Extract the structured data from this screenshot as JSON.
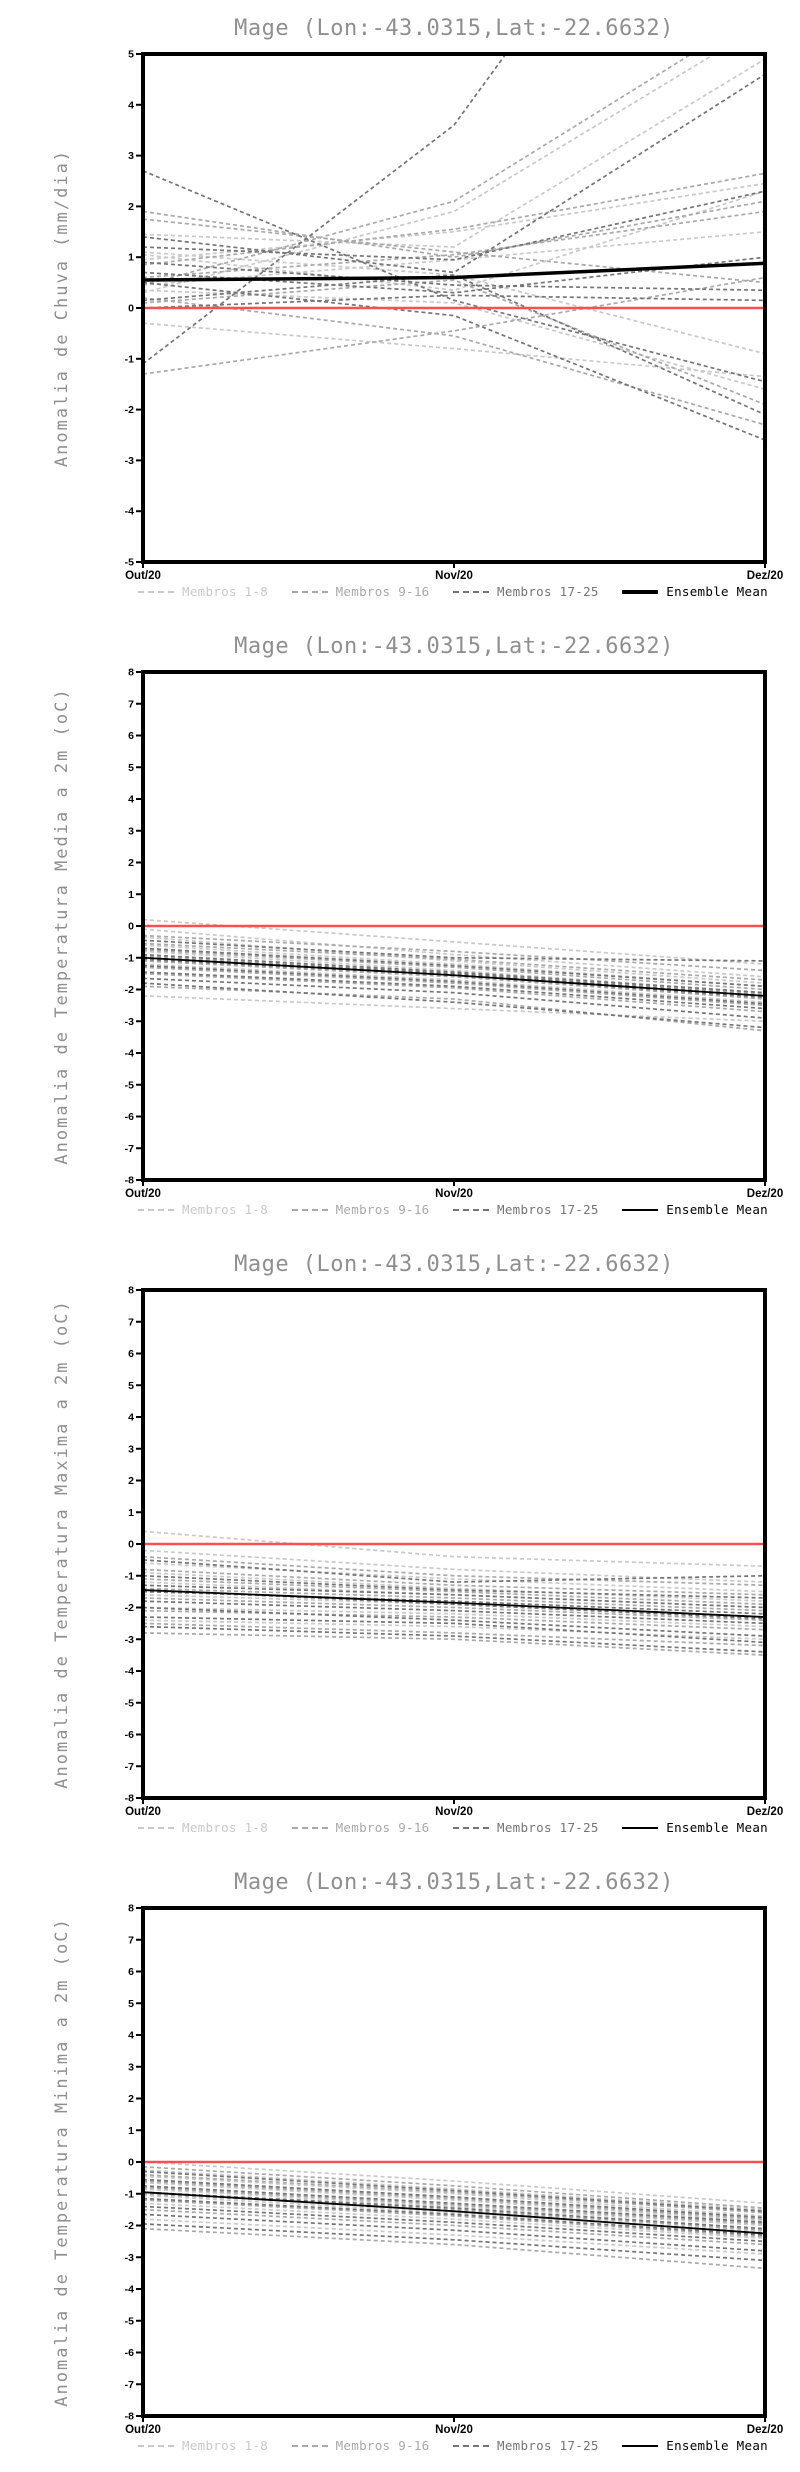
{
  "page": {
    "background": "#ffffff"
  },
  "colors": {
    "frame": "#000000",
    "zero_line": "#f85050",
    "title_text": "#8f8f8f",
    "ylabel_text": "#8f8f8f",
    "tick_text": "#000000",
    "group1": "#c9c9c9",
    "group2": "#a9a9a9",
    "group3": "#757575",
    "ensemble_mean": "#000000"
  },
  "chart_data": [
    {
      "type": "line",
      "title": "Mage (Lon:-43.0315,Lat:-22.6632)",
      "ylabel": "Anomalia de Chuva (mm/dia)",
      "ylim": [
        -5,
        5
      ],
      "yticks": [
        5,
        4,
        3,
        2,
        1,
        0,
        -1,
        -2,
        -3,
        -4,
        -5
      ],
      "x_tick_labels": [
        "Out/20",
        "Nov/20",
        "Dez/20"
      ],
      "grid": false,
      "legend_position": "bottom",
      "zero_line": {
        "y": 0,
        "color": "#f85050",
        "width": 2.5
      },
      "groups": [
        {
          "name": "Membros 1-8",
          "color": "#c9c9c9",
          "style": "dashed",
          "members": [
            [
              1.45,
              1.2,
              4.9
            ],
            [
              0.95,
              1.5,
              2.45
            ],
            [
              1.1,
              0.65,
              -0.9
            ],
            [
              0.45,
              0.95,
              1.5
            ],
            [
              0.3,
              1.9,
              5.6
            ],
            [
              -0.3,
              -0.8,
              -1.35
            ],
            [
              0.35,
              0.1,
              -1.6
            ],
            [
              1.05,
              0.35,
              2.3
            ]
          ]
        },
        {
          "name": "Membros 9-16",
          "color": "#a9a9a9",
          "style": "dashed",
          "members": [
            [
              1.9,
              1.0,
              2.1
            ],
            [
              1.75,
              1.1,
              0.5
            ],
            [
              0.85,
              1.55,
              2.65
            ],
            [
              0.6,
              1.05,
              1.9
            ],
            [
              0.45,
              2.1,
              5.9
            ],
            [
              0.1,
              0.55,
              -1.9
            ],
            [
              -1.3,
              -0.45,
              0.6
            ],
            [
              0.2,
              -0.55,
              -2.3
            ]
          ]
        },
        {
          "name": "Membros 17-25",
          "color": "#757575",
          "style": "dashed",
          "members": [
            [
              2.7,
              0.15,
              -1.45
            ],
            [
              -1.1,
              3.6,
              12.0
            ],
            [
              1.4,
              0.7,
              4.6
            ],
            [
              1.2,
              0.95,
              2.3
            ],
            [
              0.9,
              0.45,
              0.35
            ],
            [
              0.7,
              0.3,
              1.0
            ],
            [
              0.5,
              -0.15,
              -2.6
            ],
            [
              0.15,
              0.65,
              -2.1
            ],
            [
              0.0,
              0.25,
              0.15
            ]
          ]
        }
      ],
      "ensemble_mean": {
        "name": "Ensemble Mean",
        "color": "#000000",
        "style": "solid",
        "width": 3.5,
        "values": [
          0.55,
          0.6,
          0.88
        ]
      }
    },
    {
      "type": "line",
      "title": "Mage (Lon:-43.0315,Lat:-22.6632)",
      "ylabel": "Anomalia de Temperatura Media a 2m (oC)",
      "ylim": [
        -8,
        8
      ],
      "yticks": [
        8,
        7,
        6,
        5,
        4,
        3,
        2,
        1,
        0,
        -1,
        -2,
        -3,
        -4,
        -5,
        -6,
        -7,
        -8
      ],
      "x_tick_labels": [
        "Out/20",
        "Nov/20",
        "Dez/20"
      ],
      "grid": false,
      "legend_position": "bottom",
      "zero_line": {
        "y": 0,
        "color": "#f85050",
        "width": 2.5
      },
      "groups": [
        {
          "name": "Membros 1-8",
          "color": "#c9c9c9",
          "style": "dashed",
          "members": [
            [
              0.2,
              -0.5,
              -1.2
            ],
            [
              -0.1,
              -0.9,
              -1.6
            ],
            [
              -0.35,
              -1.1,
              -1.8
            ],
            [
              -0.6,
              -1.2,
              -1.9
            ],
            [
              -0.8,
              -1.4,
              -2.1
            ],
            [
              -1.0,
              -1.5,
              -2.2
            ],
            [
              -1.2,
              -1.7,
              -2.4
            ],
            [
              -2.2,
              -2.6,
              -3.0
            ]
          ]
        },
        {
          "name": "Membros 9-16",
          "color": "#a9a9a9",
          "style": "dashed",
          "members": [
            [
              -0.3,
              -0.8,
              -1.4
            ],
            [
              -0.55,
              -1.05,
              -1.7
            ],
            [
              -0.75,
              -1.3,
              -2.0
            ],
            [
              -0.95,
              -1.5,
              -2.15
            ],
            [
              -1.1,
              -1.6,
              -2.3
            ],
            [
              -1.3,
              -1.8,
              -2.5
            ],
            [
              -1.5,
              -1.95,
              -2.7
            ],
            [
              -1.9,
              -2.3,
              -3.3
            ]
          ]
        },
        {
          "name": "Membros 17-25",
          "color": "#757575",
          "style": "dashed",
          "members": [
            [
              -0.45,
              -1.0,
              -1.1
            ],
            [
              -0.7,
              -1.25,
              -1.9
            ],
            [
              -0.9,
              -1.45,
              -2.1
            ],
            [
              -1.05,
              -1.55,
              -2.25
            ],
            [
              -1.25,
              -1.75,
              -2.45
            ],
            [
              -1.45,
              -1.9,
              -2.6
            ],
            [
              -1.65,
              -2.1,
              -2.9
            ],
            [
              -1.8,
              -2.4,
              -3.2
            ],
            [
              -1.0,
              -1.5,
              -2.2
            ]
          ]
        }
      ],
      "ensemble_mean": {
        "name": "Ensemble Mean",
        "color": "#000000",
        "style": "solid",
        "width": 1.8,
        "values": [
          -1.0,
          -1.55,
          -2.2
        ]
      }
    },
    {
      "type": "line",
      "title": "Mage (Lon:-43.0315,Lat:-22.6632)",
      "ylabel": "Anomalia de Temperatura Maxima a 2m (oC)",
      "ylim": [
        -8,
        8
      ],
      "yticks": [
        8,
        7,
        6,
        5,
        4,
        3,
        2,
        1,
        0,
        -1,
        -2,
        -3,
        -4,
        -5,
        -6,
        -7,
        -8
      ],
      "x_tick_labels": [
        "Out/20",
        "Nov/20",
        "Dez/20"
      ],
      "grid": false,
      "legend_position": "bottom",
      "zero_line": {
        "y": 0,
        "color": "#f85050",
        "width": 2.5
      },
      "groups": [
        {
          "name": "Membros 1-8",
          "color": "#c9c9c9",
          "style": "dashed",
          "members": [
            [
              0.4,
              -0.4,
              -0.7
            ],
            [
              -0.2,
              -0.8,
              -1.2
            ],
            [
              -0.6,
              -1.1,
              -1.5
            ],
            [
              -0.9,
              -1.4,
              -1.8
            ],
            [
              -1.2,
              -1.6,
              -2.0
            ],
            [
              -1.6,
              -1.9,
              -2.3
            ],
            [
              -2.0,
              -2.2,
              -2.6
            ],
            [
              -2.4,
              -2.6,
              -3.0
            ]
          ]
        },
        {
          "name": "Membros 9-16",
          "color": "#a9a9a9",
          "style": "dashed",
          "members": [
            [
              -0.4,
              -1.0,
              -1.3
            ],
            [
              -0.8,
              -1.3,
              -1.6
            ],
            [
              -1.1,
              -1.5,
              -1.9
            ],
            [
              -1.4,
              -1.7,
              -2.1
            ],
            [
              -1.7,
              -2.0,
              -2.4
            ],
            [
              -2.1,
              -2.3,
              -2.7
            ],
            [
              -2.5,
              -2.8,
              -3.2
            ],
            [
              -2.8,
              -3.0,
              -3.5
            ]
          ]
        },
        {
          "name": "Membros 17-25",
          "color": "#757575",
          "style": "dashed",
          "members": [
            [
              -0.5,
              -1.2,
              -1.0
            ],
            [
              -1.0,
              -1.45,
              -1.7
            ],
            [
              -1.3,
              -1.6,
              -2.0
            ],
            [
              -1.5,
              -1.8,
              -2.2
            ],
            [
              -1.8,
              -2.1,
              -2.5
            ],
            [
              -2.0,
              -2.4,
              -2.9
            ],
            [
              -2.3,
              -2.5,
              -3.1
            ],
            [
              -2.6,
              -2.9,
              -3.4
            ],
            [
              -1.45,
              -1.9,
              -2.35
            ]
          ]
        }
      ],
      "ensemble_mean": {
        "name": "Ensemble Mean",
        "color": "#000000",
        "style": "solid",
        "width": 1.8,
        "values": [
          -1.45,
          -1.85,
          -2.3
        ]
      }
    },
    {
      "type": "line",
      "title": "Mage (Lon:-43.0315,Lat:-22.6632)",
      "ylabel": "Anomalia de Temperatura Minima a 2m (oC)",
      "ylim": [
        -8,
        8
      ],
      "yticks": [
        8,
        7,
        6,
        5,
        4,
        3,
        2,
        1,
        0,
        -1,
        -2,
        -3,
        -4,
        -5,
        -6,
        -7,
        -8
      ],
      "x_tick_labels": [
        "Out/20",
        "Nov/20",
        "Dez/20"
      ],
      "grid": false,
      "legend_position": "bottom",
      "zero_line": {
        "y": 0,
        "color": "#f85050",
        "width": 2.5
      },
      "groups": [
        {
          "name": "Membros 1-8",
          "color": "#c9c9c9",
          "style": "dashed",
          "members": [
            [
              0.0,
              -0.6,
              -1.3
            ],
            [
              -0.25,
              -0.85,
              -1.5
            ],
            [
              -0.45,
              -1.0,
              -1.7
            ],
            [
              -0.65,
              -1.2,
              -1.85
            ],
            [
              -0.85,
              -1.4,
              -2.0
            ],
            [
              -1.05,
              -1.6,
              -2.2
            ],
            [
              -1.3,
              -1.8,
              -2.4
            ],
            [
              -1.8,
              -2.3,
              -2.9
            ]
          ]
        },
        {
          "name": "Membros 9-16",
          "color": "#a9a9a9",
          "style": "dashed",
          "members": [
            [
              -0.15,
              -0.75,
              -1.45
            ],
            [
              -0.4,
              -0.95,
              -1.6
            ],
            [
              -0.6,
              -1.15,
              -1.8
            ],
            [
              -0.8,
              -1.35,
              -1.95
            ],
            [
              -1.0,
              -1.5,
              -2.15
            ],
            [
              -1.2,
              -1.7,
              -2.35
            ],
            [
              -1.5,
              -2.0,
              -2.6
            ],
            [
              -2.1,
              -2.6,
              -3.35
            ]
          ]
        },
        {
          "name": "Membros 17-25",
          "color": "#757575",
          "style": "dashed",
          "members": [
            [
              -0.3,
              -0.9,
              -1.55
            ],
            [
              -0.55,
              -1.1,
              -1.75
            ],
            [
              -0.75,
              -1.3,
              -1.9
            ],
            [
              -0.95,
              -1.45,
              -2.1
            ],
            [
              -1.15,
              -1.65,
              -2.3
            ],
            [
              -1.4,
              -1.9,
              -2.5
            ],
            [
              -1.65,
              -2.15,
              -2.8
            ],
            [
              -1.95,
              -2.45,
              -3.1
            ],
            [
              -0.95,
              -1.55,
              -2.25
            ]
          ]
        }
      ],
      "ensemble_mean": {
        "name": "Ensemble Mean",
        "color": "#000000",
        "style": "solid",
        "width": 1.8,
        "values": [
          -0.95,
          -1.55,
          -2.25
        ]
      }
    }
  ]
}
